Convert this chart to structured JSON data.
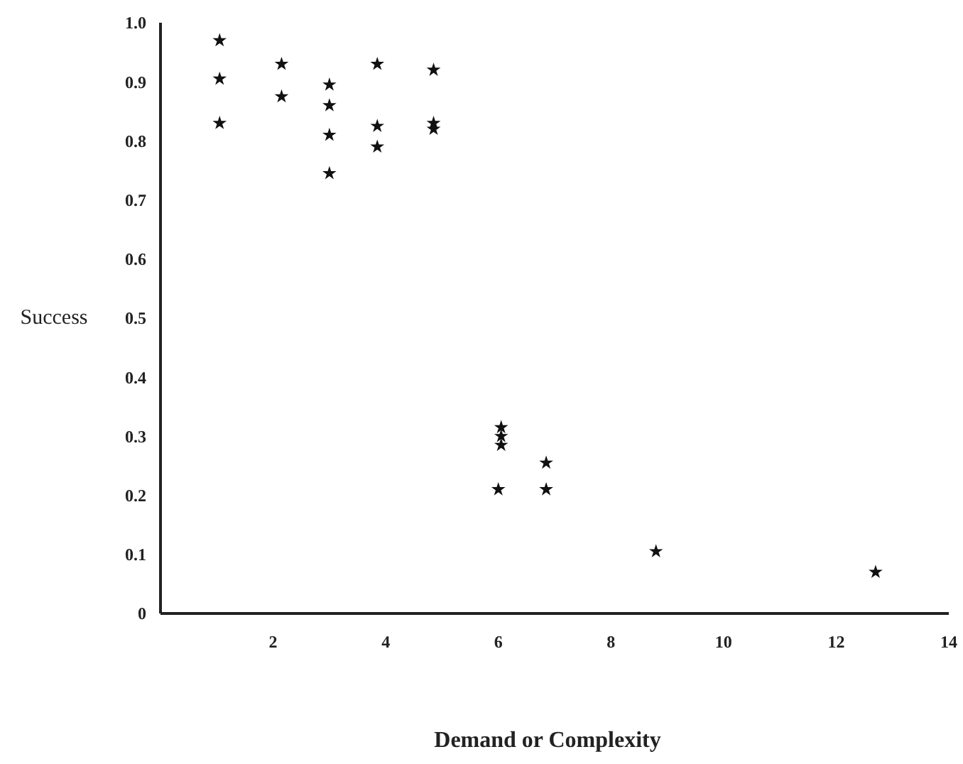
{
  "chart_data": {
    "type": "scatter",
    "xlabel": "Demand or Complexity",
    "ylabel": "Success",
    "x": [
      1.05,
      1.05,
      1.05,
      2.15,
      2.15,
      3.0,
      3.0,
      3.0,
      3.0,
      3.85,
      3.85,
      3.85,
      4.85,
      4.85,
      4.85,
      6.0,
      6.05,
      6.05,
      6.05,
      6.85,
      6.85,
      8.8,
      12.7
    ],
    "values": [
      0.97,
      0.905,
      0.83,
      0.93,
      0.875,
      0.895,
      0.86,
      0.81,
      0.745,
      0.93,
      0.825,
      0.79,
      0.92,
      0.83,
      0.82,
      0.21,
      0.315,
      0.3,
      0.285,
      0.255,
      0.21,
      0.105,
      0.07
    ],
    "color": "#111111",
    "marker": "star",
    "xlim": [
      0,
      14
    ],
    "xticks": [
      2,
      4,
      6,
      8,
      10,
      12,
      14
    ],
    "ylim": [
      0,
      1
    ],
    "yticks": [
      0,
      0.1,
      0.2,
      0.3,
      0.4,
      0.5,
      0.6,
      0.7,
      0.8,
      0.9,
      {
        "value": 1,
        "label": "1.0"
      }
    ],
    "grid": false
  }
}
